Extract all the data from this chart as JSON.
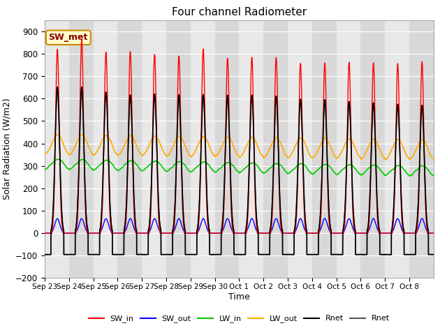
{
  "title": "Four channel Radiometer",
  "xlabel": "Time",
  "ylabel": "Solar Radiation (W/m2)",
  "ylim": [
    -200,
    950
  ],
  "yticks": [
    -200,
    -100,
    0,
    100,
    200,
    300,
    400,
    500,
    600,
    700,
    800,
    900
  ],
  "x_labels": [
    "Sep 23",
    "Sep 24",
    "Sep 25",
    "Sep 26",
    "Sep 27",
    "Sep 28",
    "Sep 29",
    "Sep 30",
    "Oct 1",
    "Oct 2",
    "Oct 3",
    "Oct 4",
    "Oct 5",
    "Oct 6",
    "Oct 7",
    "Oct 8"
  ],
  "n_days": 16,
  "annotation_text": "SW_met",
  "annotation_bg": "#ffffcc",
  "annotation_border": "#cc8800",
  "SW_in_color": "#ff0000",
  "SW_out_color": "#0000ff",
  "LW_in_color": "#00cc00",
  "LW_out_color": "#ffaa00",
  "Rnet1_color": "#000000",
  "Rnet2_color": "#555555",
  "legend_entries": [
    "SW_in",
    "SW_out",
    "LW_in",
    "LW_out",
    "Rnet",
    "Rnet"
  ],
  "legend_colors": [
    "#ff0000",
    "#0000ff",
    "#00cc00",
    "#ffaa00",
    "#000000",
    "#555555"
  ],
  "plot_bg_light": "#e8e8e8",
  "plot_bg_dark": "#d8d8d8"
}
